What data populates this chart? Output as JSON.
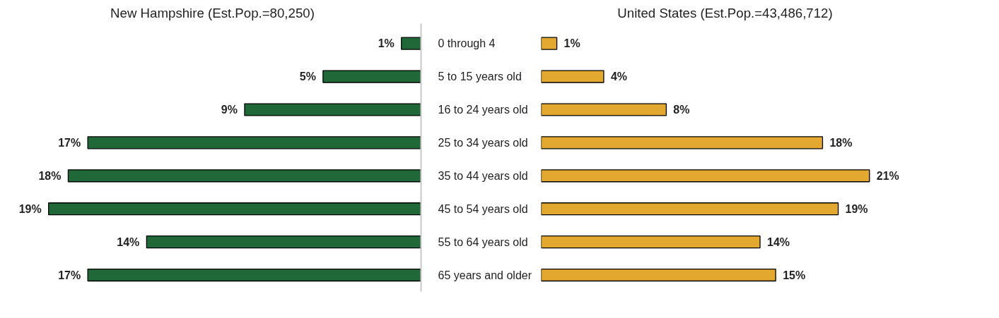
{
  "chart_data": [
    {
      "type": "bar",
      "orientation": "horizontal",
      "title": "New Hampshire (Est.Pop.=80,250)",
      "categories": [
        "0 through 4",
        "5 to 15 years old",
        "16 to 24 years old",
        "25 to 34 years old",
        "35 to 44 years old",
        "45 to 54 years old",
        "55 to 64 years old",
        "65 years and older"
      ],
      "values": [
        1,
        5,
        9,
        17,
        18,
        19,
        14,
        17
      ],
      "value_labels": [
        "1%",
        "5%",
        "9%",
        "17%",
        "18%",
        "19%",
        "14%",
        "17%"
      ],
      "color": "#216838",
      "tick_labels": "y",
      "grid": false
    },
    {
      "type": "bar",
      "orientation": "horizontal",
      "title": "United States (Est.Pop.=43,486,712)",
      "values": [
        1,
        4,
        8,
        18,
        21,
        19,
        14,
        15
      ],
      "value_labels": [
        "1%",
        "4%",
        "8%",
        "18%",
        "21%",
        "19%",
        "14%",
        "15%"
      ],
      "color": "#e2a82f",
      "tick_labels": false,
      "grid": false
    }
  ]
}
